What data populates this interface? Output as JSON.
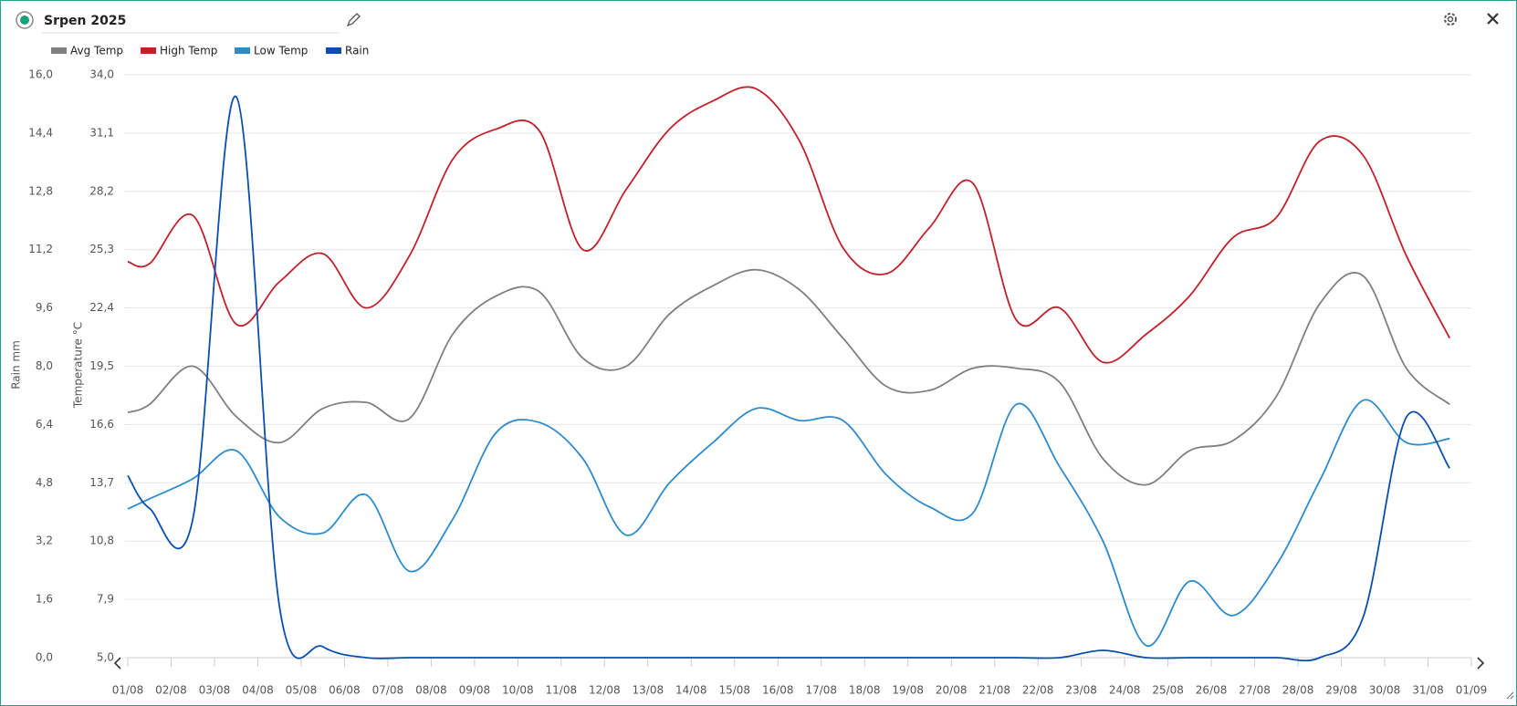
{
  "header": {
    "title": "Srpen 2025"
  },
  "chart_data": {
    "type": "line",
    "ylabel": "Rain mm",
    "y2label": "Temperature °C",
    "x": [
      1,
      1.5,
      2.5,
      3.5,
      4.5,
      5.5,
      6.5,
      7.5,
      8.5,
      9.5,
      10.5,
      11.5,
      12.5,
      13.5,
      14.5,
      15.5,
      16.5,
      17.5,
      18.5,
      19.5,
      20.5,
      21.5,
      22.5,
      23.5,
      24.5,
      25.5,
      26.5,
      27.5,
      28.5,
      29.5,
      30.5,
      31.5
    ],
    "xlim": [
      1,
      32
    ],
    "xticks": [
      {
        "value": 1,
        "label": "01/08"
      },
      {
        "value": 2,
        "label": "02/08"
      },
      {
        "value": 3,
        "label": "03/08"
      },
      {
        "value": 4,
        "label": "04/08"
      },
      {
        "value": 5,
        "label": "05/08"
      },
      {
        "value": 6,
        "label": "06/08"
      },
      {
        "value": 7,
        "label": "07/08"
      },
      {
        "value": 8,
        "label": "08/08"
      },
      {
        "value": 9,
        "label": "09/08"
      },
      {
        "value": 10,
        "label": "10/08"
      },
      {
        "value": 11,
        "label": "11/08"
      },
      {
        "value": 12,
        "label": "12/08"
      },
      {
        "value": 13,
        "label": "13/08"
      },
      {
        "value": 14,
        "label": "14/08"
      },
      {
        "value": 15,
        "label": "15/08"
      },
      {
        "value": 16,
        "label": "16/08"
      },
      {
        "value": 17,
        "label": "17/08"
      },
      {
        "value": 18,
        "label": "18/08"
      },
      {
        "value": 19,
        "label": "19/08"
      },
      {
        "value": 20,
        "label": "20/08"
      },
      {
        "value": 21,
        "label": "21/08"
      },
      {
        "value": 22,
        "label": "22/08"
      },
      {
        "value": 23,
        "label": "23/08"
      },
      {
        "value": 24,
        "label": "24/08"
      },
      {
        "value": 25,
        "label": "25/08"
      },
      {
        "value": 26,
        "label": "26/08"
      },
      {
        "value": 27,
        "label": "27/08"
      },
      {
        "value": 28,
        "label": "28/08"
      },
      {
        "value": 29,
        "label": "29/08"
      },
      {
        "value": 30,
        "label": "30/08"
      },
      {
        "value": 31,
        "label": "31/08"
      },
      {
        "value": 32,
        "label": "01/09"
      }
    ],
    "ylim": [
      0,
      16
    ],
    "yticks": [
      {
        "value": 0,
        "label": "0,0"
      },
      {
        "value": 1.6,
        "label": "1,6"
      },
      {
        "value": 3.2,
        "label": "3,2"
      },
      {
        "value": 4.8,
        "label": "4,8"
      },
      {
        "value": 6.4,
        "label": "6,4"
      },
      {
        "value": 8,
        "label": "8,0"
      },
      {
        "value": 9.6,
        "label": "9,6"
      },
      {
        "value": 11.2,
        "label": "11,2"
      },
      {
        "value": 12.8,
        "label": "12,8"
      },
      {
        "value": 14.4,
        "label": "14,4"
      },
      {
        "value": 16,
        "label": "16,0"
      }
    ],
    "y2lim": [
      5,
      34
    ],
    "y2ticks": [
      {
        "value": 5,
        "label": "5,0"
      },
      {
        "value": 7.9,
        "label": "7,9"
      },
      {
        "value": 10.8,
        "label": "10,8"
      },
      {
        "value": 13.7,
        "label": "13,7"
      },
      {
        "value": 16.6,
        "label": "16,6"
      },
      {
        "value": 19.5,
        "label": "19,5"
      },
      {
        "value": 22.4,
        "label": "22,4"
      },
      {
        "value": 25.3,
        "label": "25,3"
      },
      {
        "value": 28.2,
        "label": "28,2"
      },
      {
        "value": 31.1,
        "label": "31,1"
      },
      {
        "value": 34,
        "label": "34,0"
      }
    ],
    "grid": true,
    "series": [
      {
        "name": "Avg Temp",
        "color": "#808080",
        "axis": "y2",
        "values": [
          17.2,
          17.6,
          19.5,
          17.0,
          15.7,
          17.4,
          17.7,
          16.9,
          21.1,
          23.0,
          23.2,
          19.9,
          19.5,
          22.1,
          23.5,
          24.3,
          23.3,
          20.9,
          18.5,
          18.3,
          19.4,
          19.4,
          18.7,
          14.9,
          13.6,
          15.3,
          15.8,
          18.0,
          22.6,
          24.0,
          19.4,
          17.6
        ]
      },
      {
        "name": "High Temp",
        "color": "#c0212b",
        "axis": "y2",
        "values": [
          24.7,
          24.6,
          27.0,
          21.6,
          23.7,
          25.1,
          22.4,
          25.0,
          29.8,
          31.3,
          31.2,
          25.3,
          28.3,
          31.3,
          32.7,
          33.3,
          30.7,
          25.4,
          24.1,
          26.4,
          28.6,
          21.8,
          22.4,
          19.7,
          21.1,
          23.0,
          25.9,
          26.9,
          30.7,
          30.0,
          25.0,
          20.9
        ]
      },
      {
        "name": "Low Temp",
        "color": "#2e8bc9",
        "axis": "y2",
        "values": [
          12.4,
          12.9,
          13.9,
          15.3,
          12.0,
          11.2,
          13.1,
          9.3,
          11.9,
          16.2,
          16.7,
          14.9,
          11.1,
          13.7,
          15.7,
          17.4,
          16.8,
          16.8,
          14.1,
          12.5,
          12.2,
          17.6,
          14.5,
          10.8,
          5.6,
          8.8,
          7.1,
          9.6,
          13.8,
          17.8,
          15.7,
          15.9
        ]
      },
      {
        "name": "Rain",
        "color": "#0a4fb0",
        "values": [
          5.0,
          4.1,
          3.8,
          15.4,
          1.4,
          0.3,
          0,
          0,
          0,
          0,
          0,
          0,
          0,
          0,
          0,
          0,
          0,
          0,
          0,
          0,
          0,
          0,
          0,
          0.2,
          0,
          0,
          0,
          0,
          0,
          1.1,
          6.6,
          5.2
        ]
      }
    ]
  }
}
